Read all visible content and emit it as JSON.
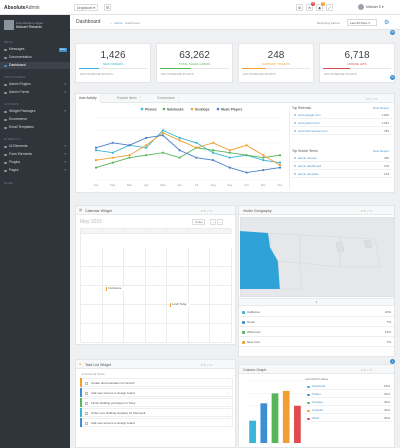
{
  "topbar": {
    "brand_bold": "Absolute",
    "brand_light": "Admin",
    "dropdown_label": "Dropdown",
    "user_label": "Michael S",
    "badges": [
      "3",
      "2"
    ]
  },
  "profile": {
    "status": "Free Member Logged",
    "name": "Michael Richards"
  },
  "sidebar": {
    "sections": [
      {
        "heading": "MENU",
        "items": [
          {
            "label": "Messages",
            "badge": "New"
          },
          {
            "label": "Documentation"
          },
          {
            "label": "Dashboard",
            "active": true
          }
        ]
      },
      {
        "heading": "ADMIN PAGES",
        "items": [
          {
            "label": "Admin Plugins"
          },
          {
            "label": "Admin Forms"
          }
        ]
      },
      {
        "heading": "SYSTEMS",
        "items": [
          {
            "label": "Widget Packages"
          },
          {
            "label": "Ecommerce"
          },
          {
            "label": "Email Templates"
          }
        ]
      },
      {
        "heading": "ELEMENTS",
        "items": [
          {
            "label": "UI Elements"
          },
          {
            "label": "Form Elements"
          },
          {
            "label": "Plugins"
          },
          {
            "label": "Pages"
          }
        ]
      },
      {
        "heading": "MORE",
        "items": []
      }
    ]
  },
  "header": {
    "title": "Dashboard",
    "breadcrumb": [
      "Home",
      "Dashboard"
    ],
    "reporting_label": "Reporting Period",
    "period_select": "Last 30 Days"
  },
  "stats": [
    {
      "value": "1,426",
      "label": "NEW ORDERS",
      "color": "#3bb4d8",
      "fill": 0.3,
      "foot": "10% INCREASE 30 DAYS"
    },
    {
      "value": "63,262",
      "label": "TOTAL SALES GROSS",
      "color": "#57b657",
      "fill": 0.45,
      "foot": "10% INCREASE 30 DAYS"
    },
    {
      "value": "248",
      "label": "SUPPORT TICKETS",
      "color": "#f0a030",
      "fill": 0.35,
      "foot": "10% INCREASE 30 DAYS"
    },
    {
      "value": "6,718",
      "label": "UNIQUE HITS",
      "color": "#e04c4c",
      "fill": 0.4,
      "foot": "10% INCREASE 30 DAYS"
    }
  ],
  "activity": {
    "tabs": [
      "User Activity",
      "Popular Items",
      "Conversions"
    ],
    "sites_title": "Top Referrals",
    "sites_link": "View Report",
    "sites": [
      {
        "name": "www.google.com",
        "value": "1,926"
      },
      {
        "name": "www.yahoo.com",
        "value": "1,254"
      },
      {
        "name": "www.themeforest.com",
        "value": "783"
      }
    ],
    "search_title": "Top Search Terms",
    "search_link": "View Report",
    "search": [
      {
        "name": "admin themes",
        "value": "466"
      },
      {
        "name": "admin dashboard",
        "value": "276"
      },
      {
        "name": "admin template",
        "value": "148"
      }
    ]
  },
  "calendar": {
    "title": "Calendar Widget",
    "month": "May 2015",
    "btn_today": "Today",
    "events": [
      "Conference",
      "Lunch Today"
    ]
  },
  "geo": {
    "title": "Visitor Geography",
    "rows": [
      {
        "name": "California",
        "pct": "24%",
        "color": "#3bb4d8"
      },
      {
        "name": "Texas",
        "pct": "7%",
        "color": "#3d8fd1"
      },
      {
        "name": "Wisconsin",
        "pct": "14%",
        "color": "#57b657"
      },
      {
        "name": "New York",
        "pct": "7%",
        "color": "#f0a030"
      }
    ]
  },
  "tasks": {
    "title": "Task List Widget",
    "subtitle": "Personal Tasks",
    "items": [
      {
        "text": "Create documentation for launch",
        "color": "#f0a030"
      },
      {
        "text": "Add new servers to design board",
        "color": "#3d8fd1"
      },
      {
        "text": "Finish building prototype for Sony",
        "color": "#57b657"
      },
      {
        "text": "Order new building supplies for Microsoft",
        "color": "#3bb4d8"
      },
      {
        "text": "Add new servers to design board",
        "color": "#3d8fd1"
      }
    ]
  },
  "column": {
    "title": "Column Graph",
    "legend_title": "Last Month Sales",
    "legend": [
      "Facebook",
      "Twitter",
      "Google+",
      "LinkedIn",
      "Other"
    ]
  },
  "chart_data": [
    {
      "type": "line",
      "categories": [
        "Jan",
        "Feb",
        "Mar",
        "Apr",
        "May",
        "Jun",
        "Jul",
        "Aug",
        "Sep",
        "Oct",
        "Nov",
        "Dec"
      ],
      "series": [
        {
          "name": "Phones",
          "color": "#3bb4d8",
          "values": [
            12,
            11,
            14,
            13,
            20,
            17,
            15,
            11,
            9,
            10,
            8,
            7
          ]
        },
        {
          "name": "Notebooks",
          "color": "#57b657",
          "values": [
            5,
            7,
            9,
            10,
            11,
            9,
            13,
            12,
            11,
            10,
            9,
            10
          ]
        },
        {
          "name": "Desktops",
          "color": "#f0a030",
          "values": [
            8,
            9,
            10,
            14,
            19,
            16,
            13,
            15,
            12,
            14,
            10,
            6
          ]
        },
        {
          "name": "Music Players",
          "color": "#4a7fc8",
          "values": [
            13,
            15,
            14,
            17,
            18,
            12,
            9,
            8,
            5,
            3,
            4,
            5
          ]
        }
      ],
      "ylim": [
        0,
        25
      ]
    },
    {
      "type": "bar",
      "categories": [
        "Facebook",
        "Twitter",
        "Google+",
        "LinkedIn",
        "Other"
      ],
      "values": [
        18,
        32,
        40,
        42,
        30
      ],
      "colors": [
        "#3bb4d8",
        "#3d8fd1",
        "#57b657",
        "#f0a030",
        "#e04c4c"
      ],
      "ylim": [
        0,
        50
      ]
    }
  ]
}
